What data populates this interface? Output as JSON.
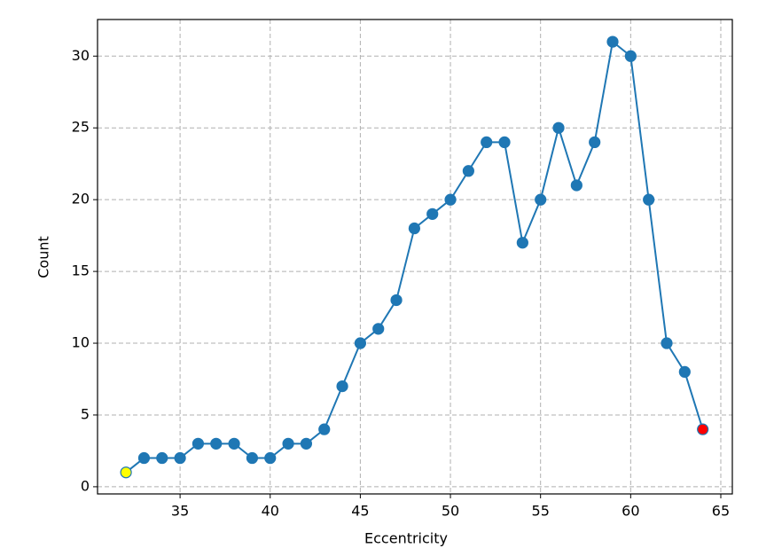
{
  "chart_data": {
    "type": "line",
    "x_label": "Eccentricity",
    "y_label": "Count",
    "x": [
      32,
      33,
      34,
      35,
      36,
      37,
      38,
      39,
      40,
      41,
      42,
      43,
      44,
      45,
      46,
      47,
      48,
      49,
      50,
      51,
      52,
      53,
      54,
      55,
      56,
      57,
      58,
      59,
      60,
      61,
      62,
      63,
      64
    ],
    "series": [
      {
        "color": "#1f77b4",
        "values": [
          1,
          2,
          2,
          2,
          3,
          3,
          3,
          2,
          2,
          3,
          3,
          4,
          7,
          10,
          11,
          13,
          18,
          19,
          20,
          22,
          24,
          24,
          17,
          20,
          25,
          21,
          24,
          31,
          30,
          20,
          10,
          8,
          4
        ]
      }
    ],
    "first_point_color": "#ffff00",
    "last_point_color": "#ff0000",
    "xlim": [
      30.42,
      65.64
    ],
    "xticks": [
      35,
      40,
      45,
      50,
      55,
      60,
      65
    ],
    "ylim": [
      -0.5,
      32.55
    ],
    "yticks": [
      0,
      5,
      10,
      15,
      20,
      25,
      30
    ],
    "grid": true
  }
}
